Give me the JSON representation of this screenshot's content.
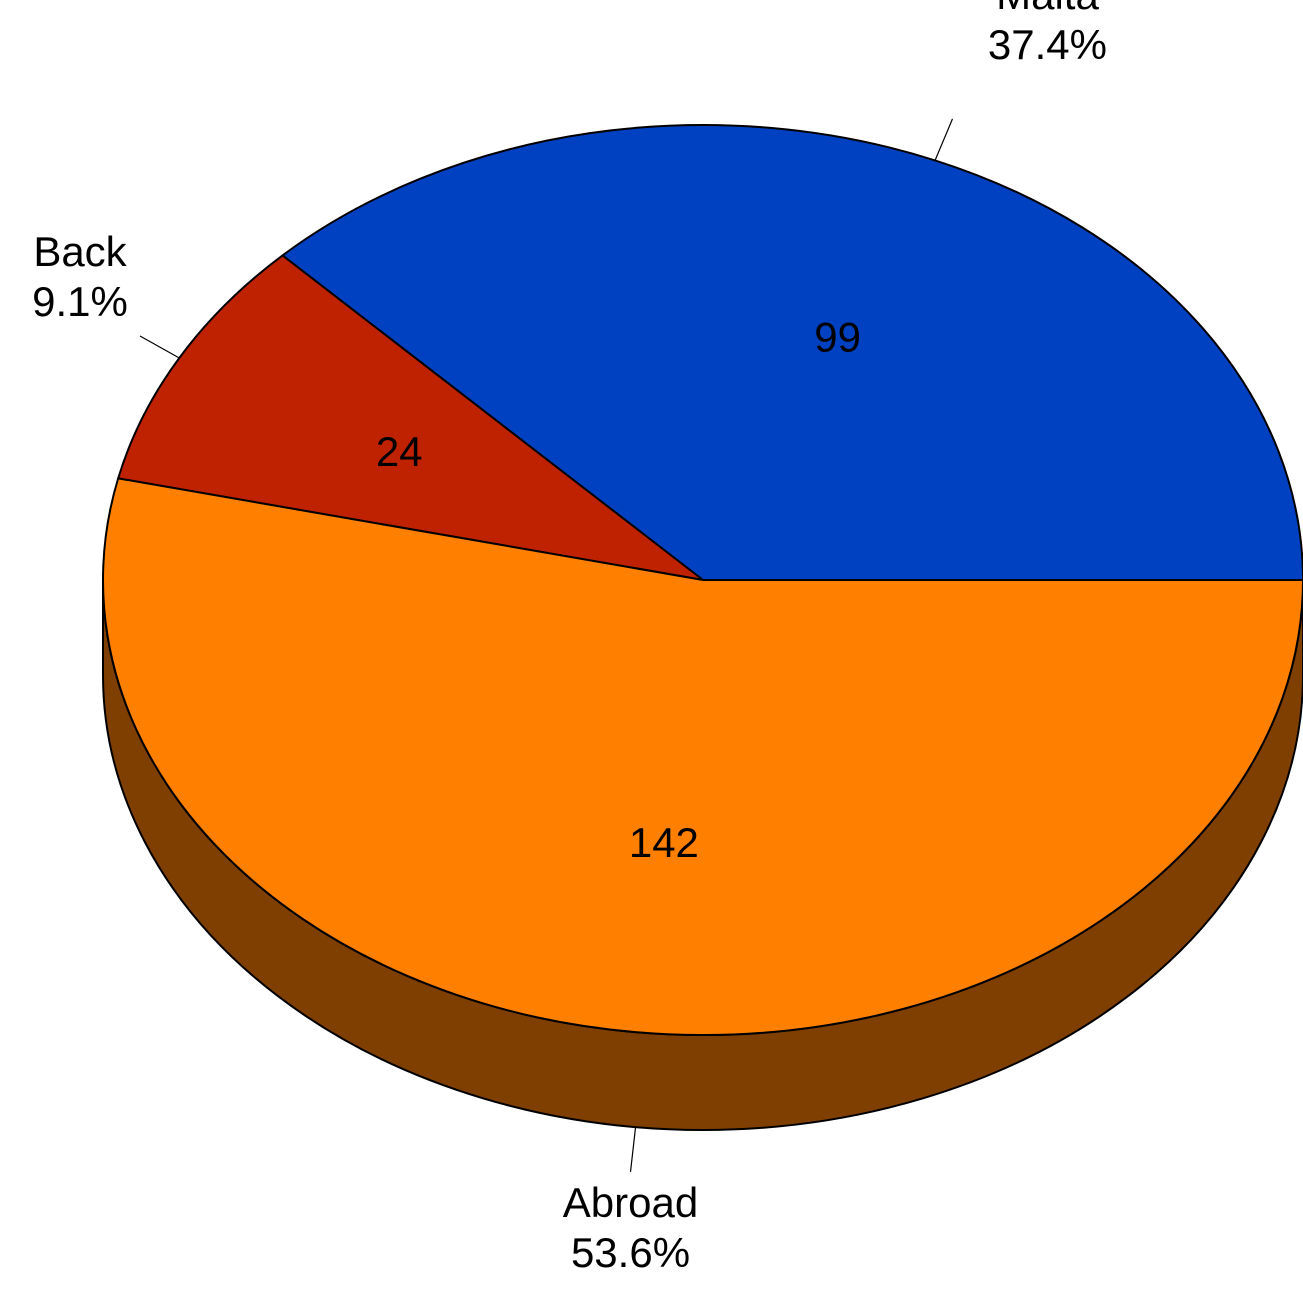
{
  "chart_data": {
    "type": "pie",
    "style": "3d",
    "slices": [
      {
        "label": "Malta",
        "value": 99,
        "percent": "37.4%",
        "color": "#0041C2",
        "side_color": "#002A80"
      },
      {
        "label": "Back",
        "value": 24,
        "percent": "9.1%",
        "color": "#BF2200",
        "side_color": "#7F1600"
      },
      {
        "label": "Abroad",
        "value": 142,
        "percent": "53.6%",
        "color": "#FF8000",
        "side_color": "#7F3F00"
      }
    ]
  }
}
